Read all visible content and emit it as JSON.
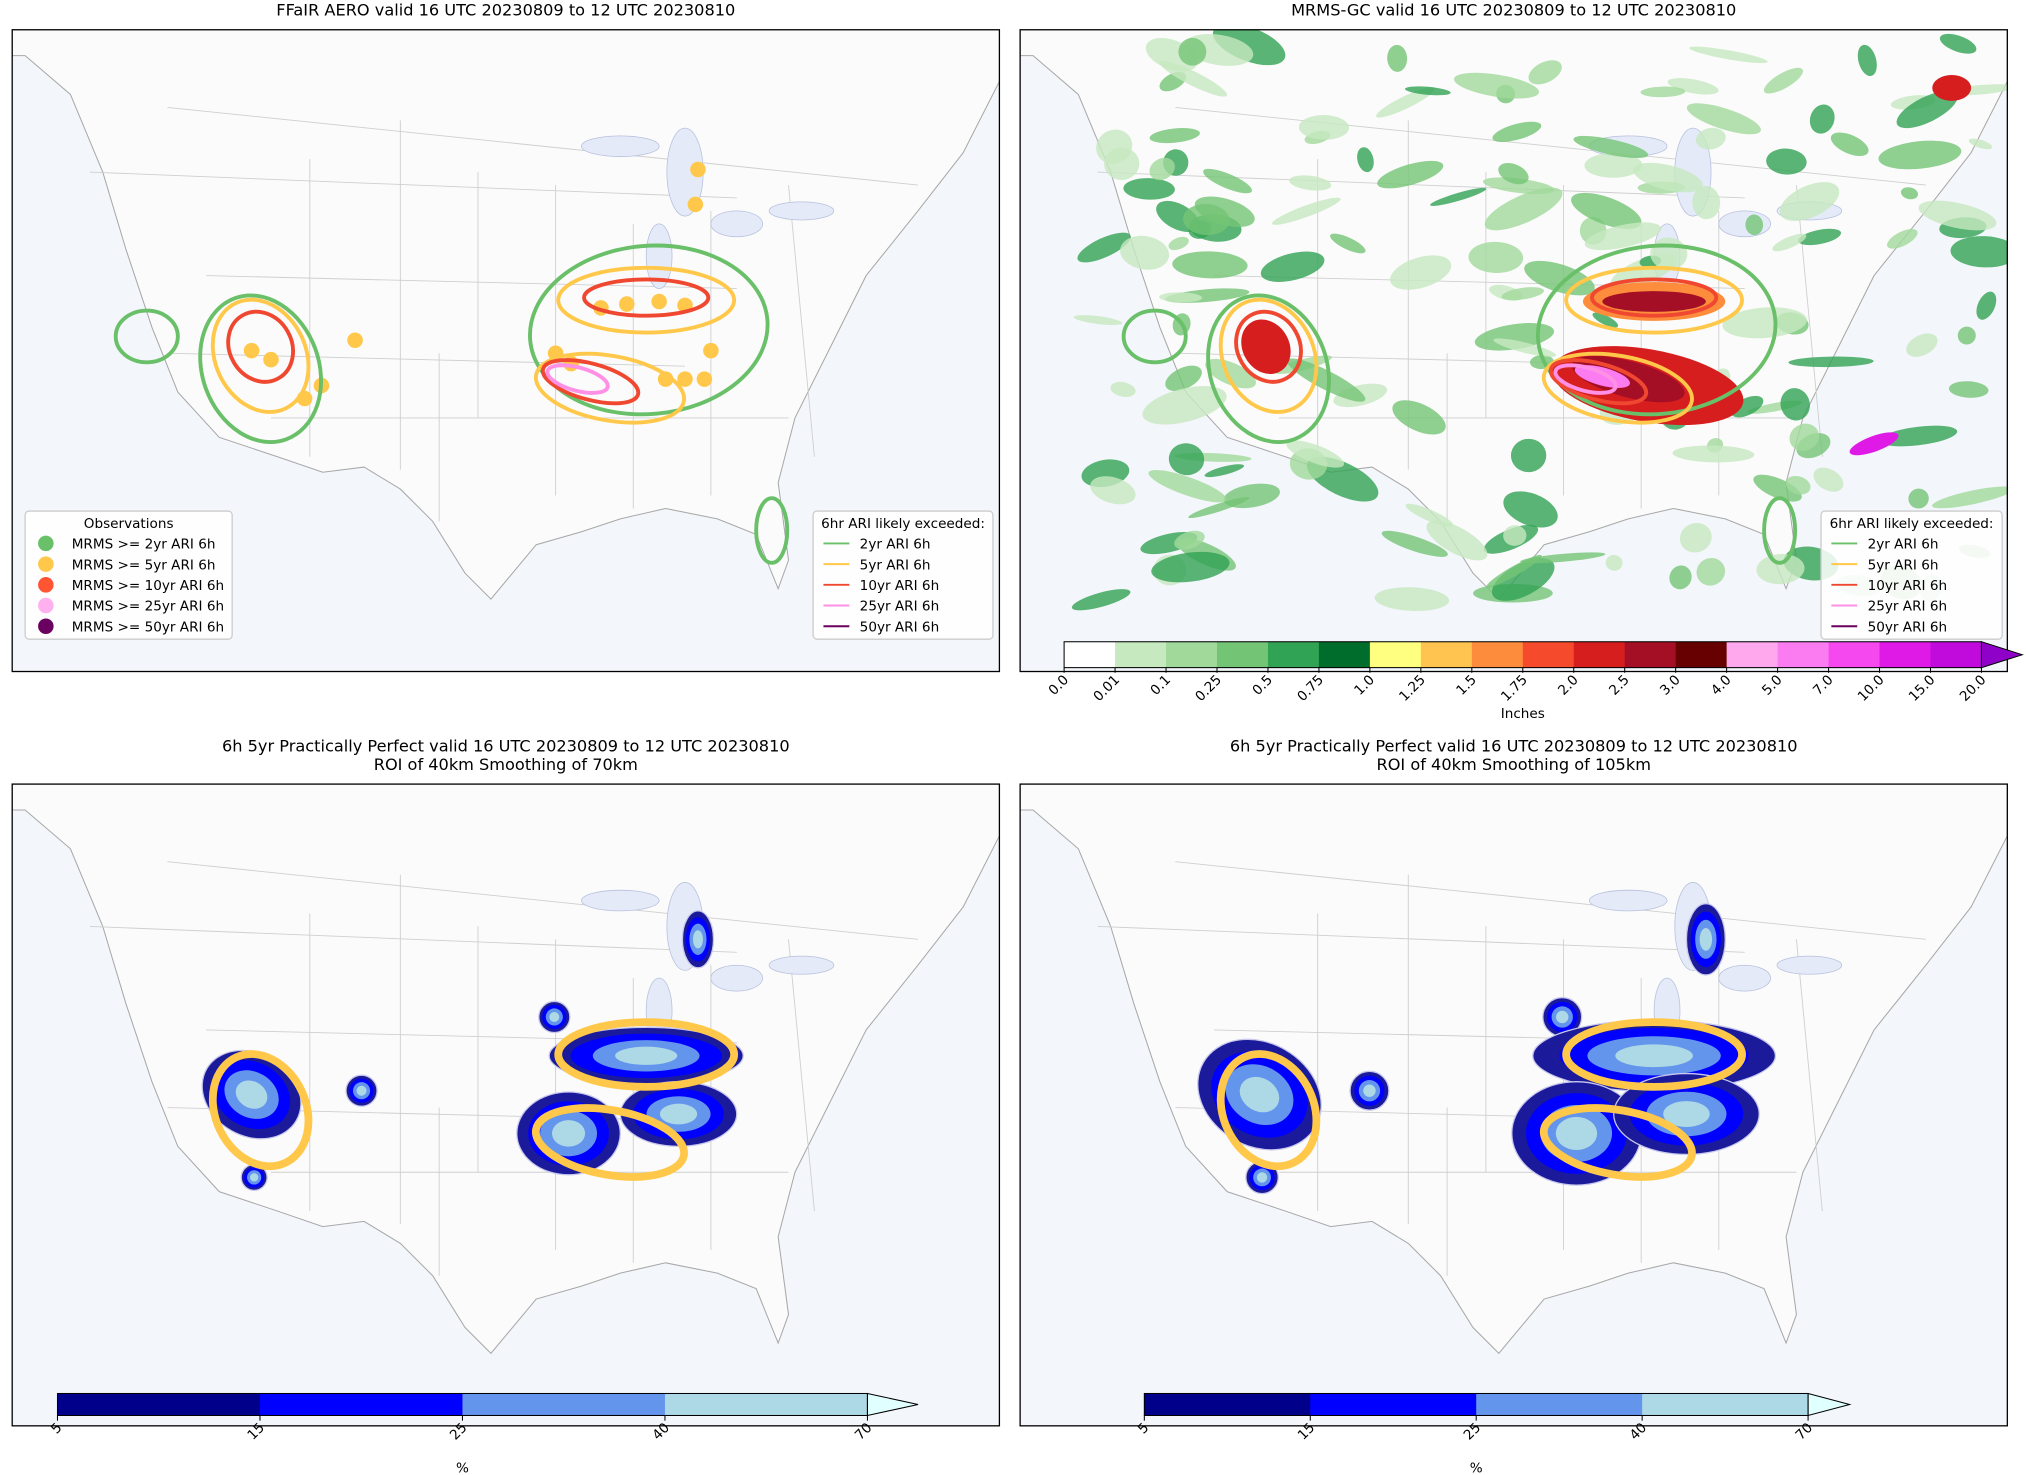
{
  "panels": [
    {
      "title": [
        "FFaIR AERO valid 16 UTC 20230809 to 12 UTC 20230810"
      ],
      "legends": [
        {
          "title": "Observations",
          "marker": "circle",
          "entries": [
            {
              "label": "MRMS >= 2yr ARI 6h",
              "color": "#6abf69"
            },
            {
              "label": "MRMS >= 5yr ARI 6h",
              "color": "#ffc84a"
            },
            {
              "label": "MRMS >= 10yr ARI 6h",
              "color": "#ff5533"
            },
            {
              "label": "MRMS >= 25yr ARI 6h",
              "color": "#ffb0ee"
            },
            {
              "label": "MRMS >= 50yr ARI 6h",
              "color": "#6a0060"
            }
          ]
        },
        {
          "title": "6hr ARI likely exceeded:",
          "marker": "line",
          "entries": [
            {
              "label": "2yr ARI 6h",
              "color": "#6abf69"
            },
            {
              "label": "5yr ARI 6h",
              "color": "#ffc84a"
            },
            {
              "label": "10yr ARI 6h",
              "color": "#f04830"
            },
            {
              "label": "25yr ARI 6h",
              "color": "#ff90e6"
            },
            {
              "label": "50yr ARI 6h",
              "color": "#6a0060"
            }
          ]
        }
      ]
    },
    {
      "title": [
        "MRMS-GC valid 16 UTC 20230809 to 12 UTC 20230810"
      ],
      "legends": [
        {
          "title": "6hr ARI likely exceeded:",
          "marker": "line",
          "entries": [
            {
              "label": "2yr ARI 6h",
              "color": "#6abf69"
            },
            {
              "label": "5yr ARI 6h",
              "color": "#ffc84a"
            },
            {
              "label": "10yr ARI 6h",
              "color": "#f04830"
            },
            {
              "label": "25yr ARI 6h",
              "color": "#ff90e6"
            },
            {
              "label": "50yr ARI 6h",
              "color": "#6a0060"
            }
          ]
        }
      ],
      "colorbar": {
        "label": "Inches",
        "ticks": [
          "0.0",
          "0.01",
          "0.1",
          "0.25",
          "0.5",
          "0.75",
          "1.0",
          "1.25",
          "1.5",
          "1.75",
          "2.0",
          "2.5",
          "3.0",
          "4.0",
          "5.0",
          "7.0",
          "10.0",
          "15.0",
          "20.0"
        ],
        "colors": [
          "#ffffff",
          "#c7e9c0",
          "#a1d99b",
          "#74c476",
          "#31a354",
          "#006d2c",
          "#ffff80",
          "#fec44f",
          "#fd8d3c",
          "#f54a2c",
          "#d61e1e",
          "#a50f26",
          "#670000",
          "#ffa8ee",
          "#fa7cf0",
          "#f548ee",
          "#e01ae6",
          "#c00bdc"
        ],
        "extend_color": "#8f00c8"
      }
    },
    {
      "title": [
        "6h 5yr Practically Perfect valid 16 UTC 20230809 to 12 UTC 20230810",
        "ROI of 40km Smoothing of 70km"
      ],
      "colorbar": {
        "label": "%",
        "ticks": [
          5,
          15,
          25,
          40,
          70
        ],
        "colors": [
          "#00008b",
          "#0000ff",
          "#6495ed",
          "#add8e6"
        ],
        "extend_color": "#e0ffff"
      }
    },
    {
      "title": [
        "6h 5yr Practically Perfect valid 16 UTC 20230809 to 12 UTC 20230810",
        "ROI of 40km Smoothing of 105km"
      ],
      "colorbar": {
        "label": "%",
        "ticks": [
          5,
          15,
          25,
          40,
          70
        ],
        "colors": [
          "#00008b",
          "#0000ff",
          "#6495ed",
          "#add8e6"
        ],
        "extend_color": "#e0ffff"
      }
    }
  ]
}
